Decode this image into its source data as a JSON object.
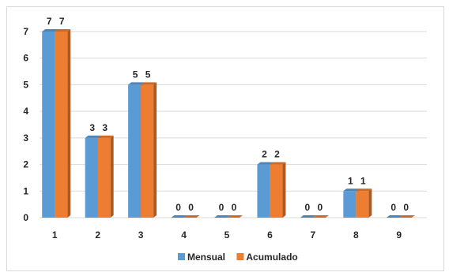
{
  "chart_data": {
    "type": "bar",
    "categories": [
      "1",
      "2",
      "3",
      "4",
      "5",
      "6",
      "7",
      "8",
      "9"
    ],
    "series": [
      {
        "name": "Mensual",
        "values": [
          7,
          3,
          5,
          0,
          0,
          2,
          0,
          1,
          0
        ],
        "color": "#5b9bd5"
      },
      {
        "name": "Acumulado",
        "values": [
          7,
          3,
          5,
          0,
          0,
          2,
          0,
          1,
          0
        ],
        "color": "#ed7d31"
      }
    ],
    "ylim": [
      0,
      7
    ],
    "yticks": [
      0,
      1,
      2,
      3,
      4,
      5,
      6,
      7
    ],
    "grid": true,
    "legend_position": "bottom",
    "bar_style": "3d"
  }
}
